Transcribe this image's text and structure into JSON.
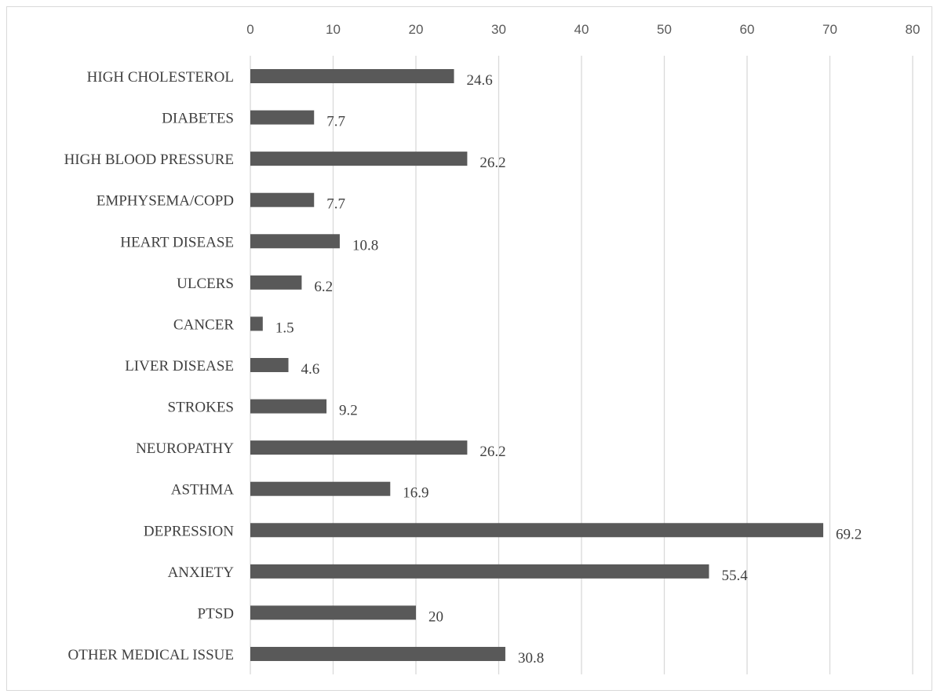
{
  "chart_data": {
    "type": "bar",
    "orientation": "horizontal",
    "categories": [
      "HIGH CHOLESTEROL",
      "DIABETES",
      "HIGH BLOOD PRESSURE",
      "EMPHYSEMA/COPD",
      "HEART DISEASE",
      "ULCERS",
      "CANCER",
      "LIVER DISEASE",
      "STROKES",
      "NEUROPATHY",
      "ASTHMA",
      "DEPRESSION",
      "ANXIETY",
      "PTSD",
      "OTHER MEDICAL ISSUE"
    ],
    "values": [
      24.6,
      7.7,
      26.2,
      7.7,
      10.8,
      6.2,
      1.5,
      4.6,
      9.2,
      26.2,
      16.9,
      69.2,
      55.4,
      20,
      30.8
    ],
    "data_labels": [
      "24.6",
      "7.7",
      "26.2",
      "7.7",
      "10.8",
      "6.2",
      "1.5",
      "4.6",
      "9.2",
      "26.2",
      "16.9",
      "69.2",
      "55.4",
      "20",
      "30.8"
    ],
    "xlim": [
      0,
      80
    ],
    "x_ticks": [
      "0",
      "10",
      "20",
      "30",
      "40",
      "50",
      "60",
      "70",
      "80"
    ],
    "x_axis_position": "top",
    "grid": true,
    "legend": "none",
    "bar_color": "#595959"
  }
}
